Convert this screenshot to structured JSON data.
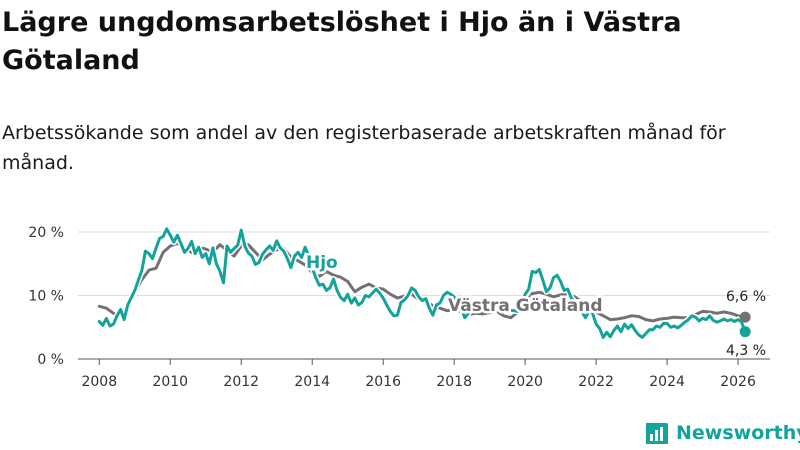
{
  "title": "Lägre ungdomsarbetslöshet i Hjo än i Västra Götaland",
  "subtitle": "Arbetssökande som andel av den registerbaserade arbetskraften månad för månad.",
  "logo": {
    "text": "Newsworthy",
    "icon": "newsworthy-logo-icon"
  },
  "chart_data": {
    "type": "line",
    "title": "Lägre ungdomsarbetslöshet i Hjo än i Västra Götaland",
    "xlabel": "",
    "ylabel": "",
    "xlim": [
      2007.4,
      2026.9
    ],
    "ylim": [
      0,
      20
    ],
    "x_ticks": [
      2008,
      2010,
      2012,
      2014,
      2016,
      2018,
      2020,
      2022,
      2024,
      2026
    ],
    "x_tick_labels": [
      "2008",
      "2010",
      "2012",
      "2014",
      "2016",
      "2018",
      "2020",
      "2022",
      "2024",
      "2026"
    ],
    "y_ticks": [
      0,
      10,
      20
    ],
    "y_tick_labels": [
      "0 %",
      "10 %",
      "20 %"
    ],
    "grid": true,
    "series": [
      {
        "name": "Västra Götaland",
        "color": "#747174",
        "label": "Västra Götaland",
        "end_label": "6,6 %",
        "end_value": 6.6,
        "points": [
          [
            2008.0,
            8.3
          ],
          [
            2008.2,
            8.0
          ],
          [
            2008.4,
            7.2
          ],
          [
            2008.6,
            6.8
          ],
          [
            2008.8,
            8.5
          ],
          [
            2009.0,
            10.5
          ],
          [
            2009.2,
            12.5
          ],
          [
            2009.4,
            14.0
          ],
          [
            2009.6,
            14.3
          ],
          [
            2009.8,
            16.8
          ],
          [
            2010.0,
            17.8
          ],
          [
            2010.2,
            18.2
          ],
          [
            2010.4,
            17.5
          ],
          [
            2010.6,
            16.8
          ],
          [
            2010.8,
            17.6
          ],
          [
            2011.0,
            17.3
          ],
          [
            2011.2,
            16.8
          ],
          [
            2011.4,
            18.0
          ],
          [
            2011.6,
            17.1
          ],
          [
            2011.8,
            16.2
          ],
          [
            2012.0,
            17.8
          ],
          [
            2012.2,
            18.0
          ],
          [
            2012.4,
            16.8
          ],
          [
            2012.6,
            15.6
          ],
          [
            2012.8,
            16.5
          ],
          [
            2013.0,
            17.2
          ],
          [
            2013.2,
            17.4
          ],
          [
            2013.4,
            16.0
          ],
          [
            2013.6,
            15.5
          ],
          [
            2013.8,
            14.8
          ],
          [
            2014.0,
            13.6
          ],
          [
            2014.2,
            13.0
          ],
          [
            2014.4,
            13.8
          ],
          [
            2014.6,
            13.2
          ],
          [
            2014.8,
            12.9
          ],
          [
            2015.0,
            12.2
          ],
          [
            2015.2,
            10.6
          ],
          [
            2015.4,
            11.3
          ],
          [
            2015.6,
            11.8
          ],
          [
            2015.8,
            11.2
          ],
          [
            2016.0,
            11.0
          ],
          [
            2016.2,
            10.2
          ],
          [
            2016.4,
            9.6
          ],
          [
            2016.6,
            9.9
          ],
          [
            2016.8,
            10.2
          ],
          [
            2017.0,
            9.4
          ],
          [
            2017.2,
            9.0
          ],
          [
            2017.4,
            8.4
          ],
          [
            2017.6,
            8.0
          ],
          [
            2017.8,
            7.6
          ],
          [
            2018.0,
            7.8
          ],
          [
            2018.2,
            7.4
          ],
          [
            2018.4,
            7.0
          ],
          [
            2018.6,
            7.2
          ],
          [
            2018.8,
            7.1
          ],
          [
            2019.0,
            7.3
          ],
          [
            2019.2,
            7.5
          ],
          [
            2019.4,
            6.8
          ],
          [
            2019.6,
            6.5
          ],
          [
            2019.8,
            7.4
          ],
          [
            2020.0,
            8.8
          ],
          [
            2020.2,
            10.3
          ],
          [
            2020.4,
            10.5
          ],
          [
            2020.6,
            10.2
          ],
          [
            2020.8,
            9.8
          ],
          [
            2021.0,
            10.1
          ],
          [
            2021.2,
            10.2
          ],
          [
            2021.4,
            9.8
          ],
          [
            2021.6,
            9.0
          ],
          [
            2021.8,
            8.2
          ],
          [
            2022.0,
            7.4
          ],
          [
            2022.2,
            6.8
          ],
          [
            2022.4,
            6.2
          ],
          [
            2022.6,
            6.3
          ],
          [
            2022.8,
            6.5
          ],
          [
            2023.0,
            6.8
          ],
          [
            2023.2,
            6.7
          ],
          [
            2023.4,
            6.2
          ],
          [
            2023.6,
            6.0
          ],
          [
            2023.8,
            6.3
          ],
          [
            2024.0,
            6.4
          ],
          [
            2024.2,
            6.6
          ],
          [
            2024.4,
            6.5
          ],
          [
            2024.6,
            6.5
          ],
          [
            2024.8,
            7.0
          ],
          [
            2025.0,
            7.5
          ],
          [
            2025.2,
            7.4
          ],
          [
            2025.4,
            7.2
          ],
          [
            2025.6,
            7.4
          ],
          [
            2025.8,
            7.2
          ],
          [
            2026.0,
            6.8
          ],
          [
            2026.2,
            6.6
          ]
        ]
      },
      {
        "name": "Hjo",
        "color": "#14a39b",
        "label": "Hjo",
        "end_label": "4,3 %",
        "end_value": 4.3,
        "points": [
          [
            2008.0,
            5.9
          ],
          [
            2008.1,
            5.3
          ],
          [
            2008.2,
            6.4
          ],
          [
            2008.3,
            5.2
          ],
          [
            2008.4,
            5.5
          ],
          [
            2008.5,
            6.8
          ],
          [
            2008.6,
            7.8
          ],
          [
            2008.7,
            6.2
          ],
          [
            2008.8,
            8.5
          ],
          [
            2009.0,
            10.8
          ],
          [
            2009.2,
            14.0
          ],
          [
            2009.3,
            17.0
          ],
          [
            2009.4,
            16.6
          ],
          [
            2009.5,
            15.8
          ],
          [
            2009.6,
            17.5
          ],
          [
            2009.7,
            19.0
          ],
          [
            2009.8,
            19.3
          ],
          [
            2009.9,
            20.5
          ],
          [
            2010.0,
            19.5
          ],
          [
            2010.1,
            18.4
          ],
          [
            2010.2,
            19.5
          ],
          [
            2010.3,
            18.2
          ],
          [
            2010.4,
            16.8
          ],
          [
            2010.5,
            17.4
          ],
          [
            2010.6,
            18.5
          ],
          [
            2010.7,
            16.6
          ],
          [
            2010.8,
            17.6
          ],
          [
            2010.9,
            16.0
          ],
          [
            2011.0,
            16.6
          ],
          [
            2011.1,
            15.0
          ],
          [
            2011.2,
            17.5
          ],
          [
            2011.3,
            15.0
          ],
          [
            2011.4,
            13.8
          ],
          [
            2011.5,
            12.0
          ],
          [
            2011.6,
            17.8
          ],
          [
            2011.7,
            16.8
          ],
          [
            2011.8,
            17.4
          ],
          [
            2011.9,
            17.9
          ],
          [
            2012.0,
            20.3
          ],
          [
            2012.1,
            17.8
          ],
          [
            2012.2,
            16.7
          ],
          [
            2012.3,
            16.2
          ],
          [
            2012.4,
            14.9
          ],
          [
            2012.5,
            15.2
          ],
          [
            2012.6,
            16.5
          ],
          [
            2012.7,
            17.2
          ],
          [
            2012.8,
            17.8
          ],
          [
            2012.9,
            17.1
          ],
          [
            2013.0,
            18.6
          ],
          [
            2013.1,
            17.5
          ],
          [
            2013.2,
            17.0
          ],
          [
            2013.3,
            15.8
          ],
          [
            2013.4,
            14.4
          ],
          [
            2013.5,
            16.2
          ],
          [
            2013.6,
            16.8
          ],
          [
            2013.7,
            16.0
          ],
          [
            2013.8,
            17.6
          ],
          [
            2013.9,
            16.2
          ],
          [
            2014.0,
            14.4
          ],
          [
            2014.1,
            12.8
          ],
          [
            2014.2,
            11.6
          ],
          [
            2014.3,
            11.8
          ],
          [
            2014.4,
            10.8
          ],
          [
            2014.5,
            11.2
          ],
          [
            2014.6,
            12.6
          ],
          [
            2014.7,
            10.8
          ],
          [
            2014.8,
            9.7
          ],
          [
            2014.9,
            9.2
          ],
          [
            2015.0,
            10.2
          ],
          [
            2015.1,
            8.8
          ],
          [
            2015.2,
            9.6
          ],
          [
            2015.3,
            8.5
          ],
          [
            2015.4,
            8.9
          ],
          [
            2015.5,
            10.0
          ],
          [
            2015.6,
            9.8
          ],
          [
            2015.7,
            10.4
          ],
          [
            2015.8,
            11.0
          ],
          [
            2015.9,
            10.4
          ],
          [
            2016.0,
            9.6
          ],
          [
            2016.1,
            8.5
          ],
          [
            2016.2,
            7.5
          ],
          [
            2016.3,
            6.8
          ],
          [
            2016.4,
            6.9
          ],
          [
            2016.5,
            8.9
          ],
          [
            2016.6,
            9.3
          ],
          [
            2016.7,
            10.0
          ],
          [
            2016.8,
            11.2
          ],
          [
            2016.9,
            10.8
          ],
          [
            2017.0,
            9.8
          ],
          [
            2017.1,
            9.2
          ],
          [
            2017.2,
            9.5
          ],
          [
            2017.3,
            8.0
          ],
          [
            2017.4,
            6.9
          ],
          [
            2017.5,
            8.5
          ],
          [
            2017.6,
            8.8
          ],
          [
            2017.7,
            10.0
          ],
          [
            2017.8,
            10.5
          ],
          [
            2017.9,
            10.2
          ],
          [
            2018.0,
            9.8
          ],
          [
            2018.1,
            8.2
          ],
          [
            2018.2,
            8.0
          ],
          [
            2018.3,
            6.5
          ],
          [
            2018.4,
            7.2
          ],
          [
            2018.5,
            8.2
          ],
          [
            2018.6,
            8.5
          ],
          [
            2019.8,
            7.5
          ],
          [
            2019.9,
            8.5
          ],
          [
            2020.0,
            10.2
          ],
          [
            2020.1,
            11.0
          ],
          [
            2020.2,
            13.8
          ],
          [
            2020.3,
            13.6
          ],
          [
            2020.4,
            14.1
          ],
          [
            2020.5,
            12.4
          ],
          [
            2020.6,
            10.6
          ],
          [
            2020.7,
            11.2
          ],
          [
            2020.8,
            12.8
          ],
          [
            2020.9,
            13.2
          ],
          [
            2021.0,
            12.2
          ],
          [
            2021.1,
            10.8
          ],
          [
            2021.2,
            11.0
          ],
          [
            2021.3,
            9.6
          ],
          [
            2021.4,
            9.0
          ],
          [
            2021.5,
            8.4
          ],
          [
            2021.6,
            7.4
          ],
          [
            2021.7,
            6.5
          ],
          [
            2021.8,
            7.5
          ],
          [
            2021.9,
            7.2
          ],
          [
            2022.0,
            5.5
          ],
          [
            2022.1,
            4.8
          ],
          [
            2022.2,
            3.4
          ],
          [
            2022.3,
            4.2
          ],
          [
            2022.4,
            3.5
          ],
          [
            2022.5,
            4.5
          ],
          [
            2022.6,
            5.2
          ],
          [
            2022.7,
            4.3
          ],
          [
            2022.8,
            5.5
          ],
          [
            2022.9,
            4.8
          ],
          [
            2023.0,
            5.4
          ],
          [
            2023.1,
            4.5
          ],
          [
            2023.2,
            3.8
          ],
          [
            2023.3,
            3.4
          ],
          [
            2023.4,
            4.0
          ],
          [
            2023.5,
            4.6
          ],
          [
            2023.6,
            4.6
          ],
          [
            2023.7,
            5.2
          ],
          [
            2023.8,
            5.0
          ],
          [
            2023.9,
            5.6
          ],
          [
            2024.0,
            5.6
          ],
          [
            2024.1,
            5.0
          ],
          [
            2024.2,
            5.2
          ],
          [
            2024.3,
            4.9
          ],
          [
            2024.4,
            5.3
          ],
          [
            2024.5,
            5.8
          ],
          [
            2024.6,
            6.2
          ],
          [
            2024.7,
            6.8
          ],
          [
            2024.8,
            6.6
          ],
          [
            2024.9,
            6.0
          ],
          [
            2025.0,
            6.4
          ],
          [
            2025.1,
            6.2
          ],
          [
            2025.2,
            6.8
          ],
          [
            2025.3,
            6.1
          ],
          [
            2025.4,
            5.8
          ],
          [
            2025.5,
            6.0
          ],
          [
            2025.6,
            6.3
          ],
          [
            2025.7,
            6.0
          ],
          [
            2025.8,
            6.2
          ],
          [
            2025.9,
            5.9
          ],
          [
            2026.0,
            6.2
          ],
          [
            2026.1,
            5.8
          ],
          [
            2026.2,
            4.3
          ]
        ]
      }
    ]
  }
}
